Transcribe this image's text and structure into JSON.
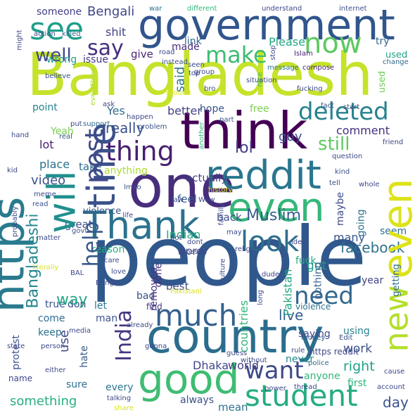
{
  "wordcloud": {
    "words": [
      {
        "text": "Bangladesh",
        "color": "#c6e22a"
      },
      {
        "text": "people",
        "color": "#2c6d8e"
      },
      {
        "text": "government",
        "color": "#30558c"
      },
      {
        "text": "country",
        "color": "#2c718e"
      },
      {
        "text": "https",
        "color": "#2a7a8e"
      },
      {
        "text": "think",
        "color": "#440154"
      },
      {
        "text": "one",
        "color": "#482677"
      },
      {
        "text": "even",
        "color": "#dde318"
      },
      {
        "text": "know",
        "color": "#2fb47c"
      },
      {
        "text": "Thank",
        "color": "#2c728e"
      },
      {
        "text": "will",
        "color": "#21908d"
      },
      {
        "text": "reddit",
        "color": "#2a788e"
      },
      {
        "text": "time",
        "color": "#3b518b"
      },
      {
        "text": "good",
        "color": "#3fbc73"
      },
      {
        "text": "new",
        "color": "#b5de2b"
      },
      {
        "text": "student",
        "color": "#25ac82"
      },
      {
        "text": "post",
        "color": "#3e4a89"
      },
      {
        "text": "much",
        "color": "#35608d"
      },
      {
        "text": "see",
        "color": "#1f9e89"
      },
      {
        "text": "now",
        "color": "#5cc863"
      },
      {
        "text": "make",
        "color": "#3fbc73"
      },
      {
        "text": "say",
        "color": "#472c7a"
      },
      {
        "text": "deleted",
        "color": "#26828e"
      },
      {
        "text": "thing",
        "color": "#481f70"
      },
      {
        "text": "look",
        "color": "#2e6e8e"
      },
      {
        "text": "help",
        "color": "#38598c"
      },
      {
        "text": "India",
        "color": "#463480"
      },
      {
        "text": "need",
        "color": "#31678e"
      },
      {
        "text": "want",
        "color": "#3e4989"
      },
      {
        "text": "still",
        "color": "#5ec962"
      },
      {
        "text": "really",
        "color": "#3b528b"
      },
      {
        "text": "well",
        "color": "#3e4a89"
      },
      {
        "text": "Bangladeshi",
        "color": "#24878e"
      },
      {
        "text": "facebook",
        "color": "#2d708e"
      },
      {
        "text": "Muslim",
        "color": "#375b8d"
      },
      {
        "text": "lol",
        "color": "#424086"
      },
      {
        "text": "actually",
        "color": "#433e85"
      },
      {
        "text": "thing2",
        "color": "#481f70"
      },
      {
        "text": "Yes",
        "color": "#2f6c8e"
      },
      {
        "text": "Bengali",
        "color": "#3f4788"
      },
      {
        "text": "Please",
        "color": "#22a884"
      },
      {
        "text": "Dhaka",
        "color": "#3f4788"
      },
      {
        "text": "world",
        "color": "#433d84"
      },
      {
        "text": "mean",
        "color": "#2b748e"
      },
      {
        "text": "live",
        "color": "#355e8d"
      },
      {
        "text": "work",
        "color": "#3a538b"
      },
      {
        "text": "right",
        "color": "#1fa088"
      },
      {
        "text": "countries",
        "color": "#31b57b"
      },
      {
        "text": "Pakistan",
        "color": "#21a685"
      },
      {
        "text": "day",
        "color": "#3a548c"
      },
      {
        "text": "something",
        "color": "#29af7f"
      },
      {
        "text": "comment",
        "color": "#46317e"
      },
      {
        "text": "guy",
        "color": "#3e4989"
      },
      {
        "text": "better",
        "color": "#414487"
      },
      {
        "text": "shit",
        "color": "#414487"
      },
      {
        "text": "way",
        "color": "#22a884"
      },
      {
        "text": "Indian",
        "color": "#27ad81"
      },
      {
        "text": "back",
        "color": "#3d4d8a"
      },
      {
        "text": "anything",
        "color": "#addc30"
      },
      {
        "text": "give",
        "color": "#482475"
      },
      {
        "text": "made",
        "color": "#472d7b"
      },
      {
        "text": "link",
        "color": "#31668e"
      },
      {
        "text": "feel",
        "color": "#365c8d"
      },
      {
        "text": "take",
        "color": "#2e6f8e"
      },
      {
        "text": "video",
        "color": "#3b528b"
      },
      {
        "text": "place",
        "color": "#2c718e"
      },
      {
        "text": "lot",
        "color": "#482071"
      },
      {
        "text": "point",
        "color": "#26828e"
      },
      {
        "text": "Yeah",
        "color": "#7ad151"
      },
      {
        "text": "said",
        "color": "#2c728e"
      },
      {
        "text": "hope",
        "color": "#3a548c"
      },
      {
        "text": "free",
        "color": "#7ad151"
      },
      {
        "text": "someone",
        "color": "#424086"
      },
      {
        "text": "great",
        "color": "#3e4989"
      },
      {
        "text": "maybe",
        "color": "#3e4a89"
      },
      {
        "text": "going",
        "color": "#2d708e"
      },
      {
        "text": "many",
        "color": "#3a548c"
      },
      {
        "text": "got",
        "color": "#1f9e89"
      },
      {
        "text": "reason",
        "color": "#29af7f"
      },
      {
        "text": "best",
        "color": "#3d4e8a"
      },
      {
        "text": "done",
        "color": "#472f7d"
      },
      {
        "text": "word",
        "color": "#3f4788"
      },
      {
        "text": "removed",
        "color": "#453581"
      },
      {
        "text": "nothing",
        "color": "#34608d"
      },
      {
        "text": "fuck",
        "color": "#24aa83"
      },
      {
        "text": "year",
        "color": "#414487"
      },
      {
        "text": "getting",
        "color": "#2d708e"
      },
      {
        "text": "seem",
        "color": "#2e6e8e"
      },
      {
        "text": "true",
        "color": "#3b518b"
      },
      {
        "text": "don",
        "color": "#3f4788"
      },
      {
        "text": "use",
        "color": "#3e4989"
      },
      {
        "text": "let",
        "color": "#2a768e"
      },
      {
        "text": "man",
        "color": "#3b528b"
      },
      {
        "text": "bad",
        "color": "#3d4e8a"
      },
      {
        "text": "find",
        "color": "#453882"
      },
      {
        "text": "keep",
        "color": "#2d708e"
      },
      {
        "text": "come",
        "color": "#2f6b8e"
      },
      {
        "text": "sure",
        "color": "#2e6f8e"
      },
      {
        "text": "hate",
        "color": "#38598c"
      },
      {
        "text": "every",
        "color": "#2a778e"
      },
      {
        "text": "always",
        "color": "#3b518b"
      },
      {
        "text": "saying",
        "color": "#3e4989"
      },
      {
        "text": "using",
        "color": "#26828e"
      },
      {
        "text": "anyone",
        "color": "#32b67a"
      },
      {
        "text": "never",
        "color": "#24868e"
      },
      {
        "text": "first",
        "color": "#2db27d"
      },
      {
        "text": "protest",
        "color": "#3b518b"
      },
      {
        "text": "violence",
        "color": "#2c728e"
      },
      {
        "text": "issue",
        "color": "#3a538b"
      },
      {
        "text": "wrong",
        "color": "#443983"
      },
      {
        "text": "try",
        "color": "#20a486"
      },
      {
        "text": "used",
        "color": "#31668e"
      },
      {
        "text": "least",
        "color": "#20a386"
      },
      {
        "text": "trying",
        "color": "#6ece58"
      }
    ],
    "small_words": [
      "Edit",
      "https reddit",
      "rule",
      "police",
      "money",
      "dude",
      "war",
      "different",
      "understand",
      "internet",
      "action",
      "killed",
      "might",
      "road",
      "Islam",
      "instead",
      "believe",
      "message",
      "compose",
      "ground",
      "bro",
      "situation",
      "fucking",
      "change",
      "group",
      "nice",
      "ask",
      "fact",
      "start",
      "everything",
      "happen",
      "problem",
      "put",
      "support",
      "part",
      "friend",
      "real",
      "another",
      "question",
      "hand",
      "kid",
      "meme",
      "whole",
      "kind",
      "tell",
      "lmao",
      "history",
      "law",
      "Wow",
      "read",
      "life",
      "family",
      "probably",
      "govt",
      "bot",
      "may",
      "idea",
      "matter",
      "literally",
      "care",
      "based",
      "religion",
      "love",
      "culture",
      "long",
      "BAL",
      "Bangla",
      "Pakistani",
      "already",
      "media",
      "gonna",
      "guess",
      "without",
      "state",
      "person",
      "name",
      "either",
      "talking",
      "share",
      "thread",
      "power",
      "account",
      "cause",
      "stop",
      "seen",
      "top",
      "dont",
      "Someone"
    ]
  }
}
